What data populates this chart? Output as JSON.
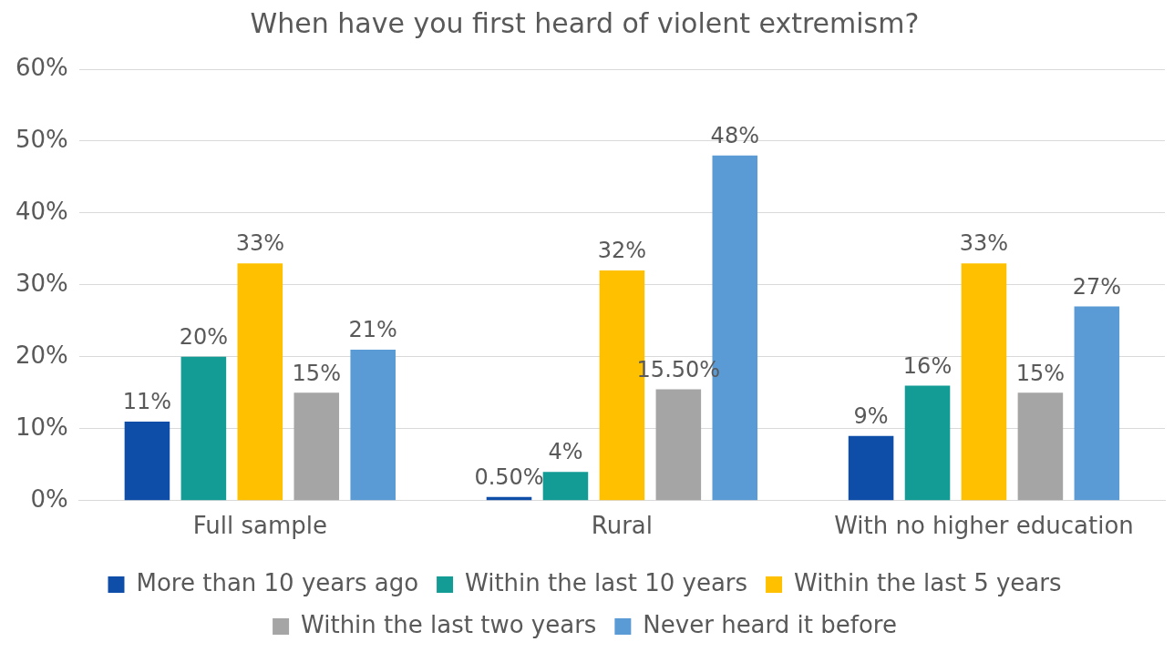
{
  "chart_data": {
    "type": "bar",
    "title": "When have you first heard of violent extremism?",
    "categories": [
      "Full sample",
      "Rural",
      "With no higher education"
    ],
    "series": [
      {
        "name": "More than 10 years ago",
        "color": "#0f4ea8",
        "values": [
          11,
          0.5,
          9
        ],
        "value_labels": [
          "11%",
          "0.50%",
          "9%"
        ]
      },
      {
        "name": "Within the last 10 years",
        "color": "#139b96",
        "values": [
          20,
          4,
          16
        ],
        "value_labels": [
          "20%",
          "4%",
          "16%"
        ]
      },
      {
        "name": "Within the last 5 years",
        "color": "#ffc000",
        "values": [
          33,
          32,
          33
        ],
        "value_labels": [
          "33%",
          "32%",
          "33%"
        ]
      },
      {
        "name": "Within the last two years",
        "color": "#a5a5a5",
        "values": [
          15,
          15.5,
          15
        ],
        "value_labels": [
          "15%",
          "15.50%",
          "15%"
        ]
      },
      {
        "name": "Never heard it before",
        "color": "#5b9bd5",
        "values": [
          21,
          48,
          27
        ],
        "value_labels": [
          "21%",
          "48%",
          "27%"
        ]
      }
    ],
    "ylim": [
      0,
      60
    ],
    "yticks": [
      {
        "value": 0,
        "label": "0%"
      },
      {
        "value": 10,
        "label": "10%"
      },
      {
        "value": 20,
        "label": "20%"
      },
      {
        "value": 30,
        "label": "30%"
      },
      {
        "value": 40,
        "label": "40%"
      },
      {
        "value": 50,
        "label": "50%"
      },
      {
        "value": 60,
        "label": "60%"
      }
    ],
    "grid": "y",
    "legend": "bottom"
  }
}
